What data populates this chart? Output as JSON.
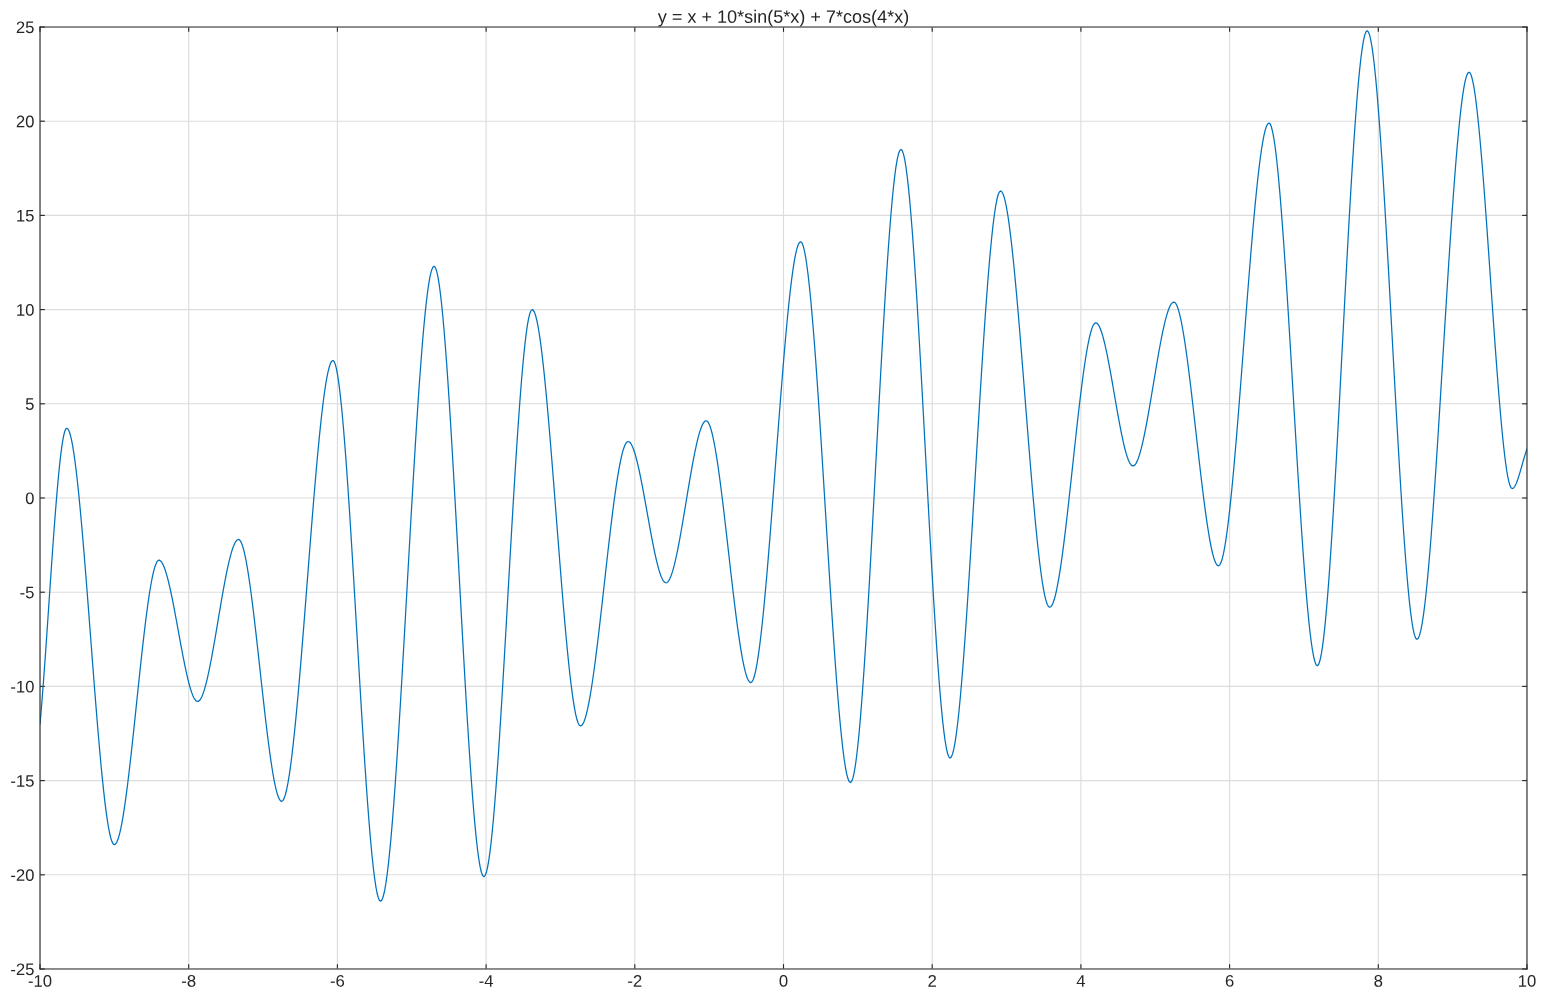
{
  "chart_data": {
    "type": "line",
    "title": "y = x + 10*sin(5*x) + 7*cos(4*x)",
    "x": [
      -10,
      -9.64,
      -9.0,
      -8.4,
      -7.88,
      -7.33,
      -6.75,
      -6.06,
      -5.42,
      -4.7,
      -4.03,
      -3.38,
      -2.73,
      -2.09,
      -1.58,
      -1.04,
      -0.44,
      0.23,
      0.9,
      1.58,
      2.24,
      2.92,
      3.58,
      4.2,
      4.7,
      5.25,
      5.85,
      6.53,
      7.18,
      7.85,
      8.52,
      9.22,
      9.8,
      10
    ],
    "series": [
      {
        "color": "#0072bd",
        "values": [
          -12,
          3.7,
          -18.4,
          -3.3,
          -10.8,
          -2.2,
          -16.1,
          7.3,
          -21.4,
          12.3,
          -20.1,
          10.0,
          -12.1,
          3.0,
          -4.5,
          4.1,
          -9.8,
          13.6,
          -15.1,
          18.5,
          -13.8,
          16.3,
          -5.8,
          9.3,
          1.7,
          10.4,
          -3.6,
          19.9,
          -8.9,
          24.8,
          -7.5,
          22.6,
          0.5,
          2.6
        ]
      }
    ],
    "xlim": [
      -10,
      10
    ],
    "ylim": [
      -25,
      25
    ],
    "xticks": [
      -10,
      -8,
      -6,
      -4,
      -2,
      0,
      2,
      4,
      6,
      8,
      10
    ],
    "yticks": [
      -25,
      -20,
      -15,
      -10,
      -5,
      0,
      5,
      10,
      15,
      20,
      25
    ],
    "grid": true,
    "line_style": "solid",
    "marker": "none"
  }
}
